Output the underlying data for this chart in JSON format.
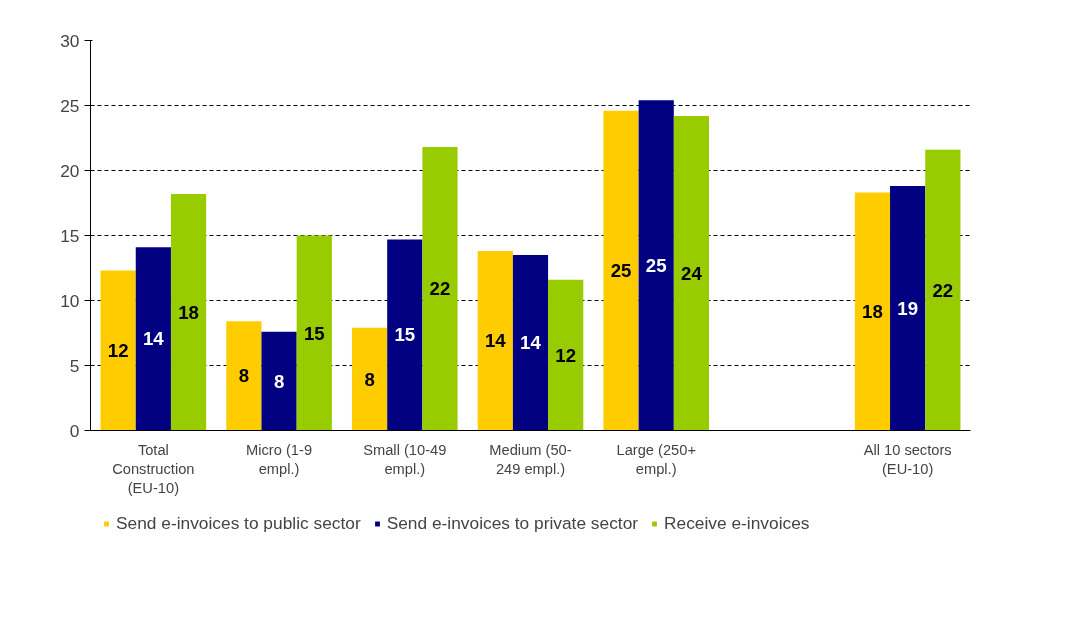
{
  "chart_data": {
    "type": "bar",
    "categories": [
      "Total\nConstruction\n(EU-10)",
      "Micro (1-9\nempl.)",
      "Small (10-49\nempl.)",
      "Medium (50-\n249 empl.)",
      "Large (250+\nempl.)",
      null,
      "All 10 sectors\n(EU-10)"
    ],
    "series": [
      {
        "name": "Send e-invoices to public sector",
        "color": "#ffcc00",
        "values": [
          12.3,
          8.4,
          7.9,
          13.8,
          24.6,
          null,
          18.3
        ],
        "value_labels": [
          "12",
          "8",
          "8",
          "14",
          "25",
          null,
          "18"
        ]
      },
      {
        "name": "Send e-invoices to private sector",
        "color": "#000080",
        "values": [
          14.1,
          7.6,
          14.7,
          13.5,
          25.4,
          null,
          18.8
        ],
        "value_labels": [
          "14",
          "8",
          "15",
          "14",
          "25",
          null,
          "19"
        ]
      },
      {
        "name": "Receive e-invoices",
        "color": "#99cc00",
        "values": [
          18.2,
          15.0,
          21.8,
          11.6,
          24.2,
          null,
          21.6
        ],
        "value_labels": [
          "18",
          "15",
          "22",
          "12",
          "24",
          null,
          "22"
        ]
      }
    ],
    "ylim": [
      0,
      30
    ],
    "yticks": [
      0,
      5,
      10,
      15,
      20,
      25,
      30
    ],
    "grid": "y",
    "legend": "bottom"
  }
}
